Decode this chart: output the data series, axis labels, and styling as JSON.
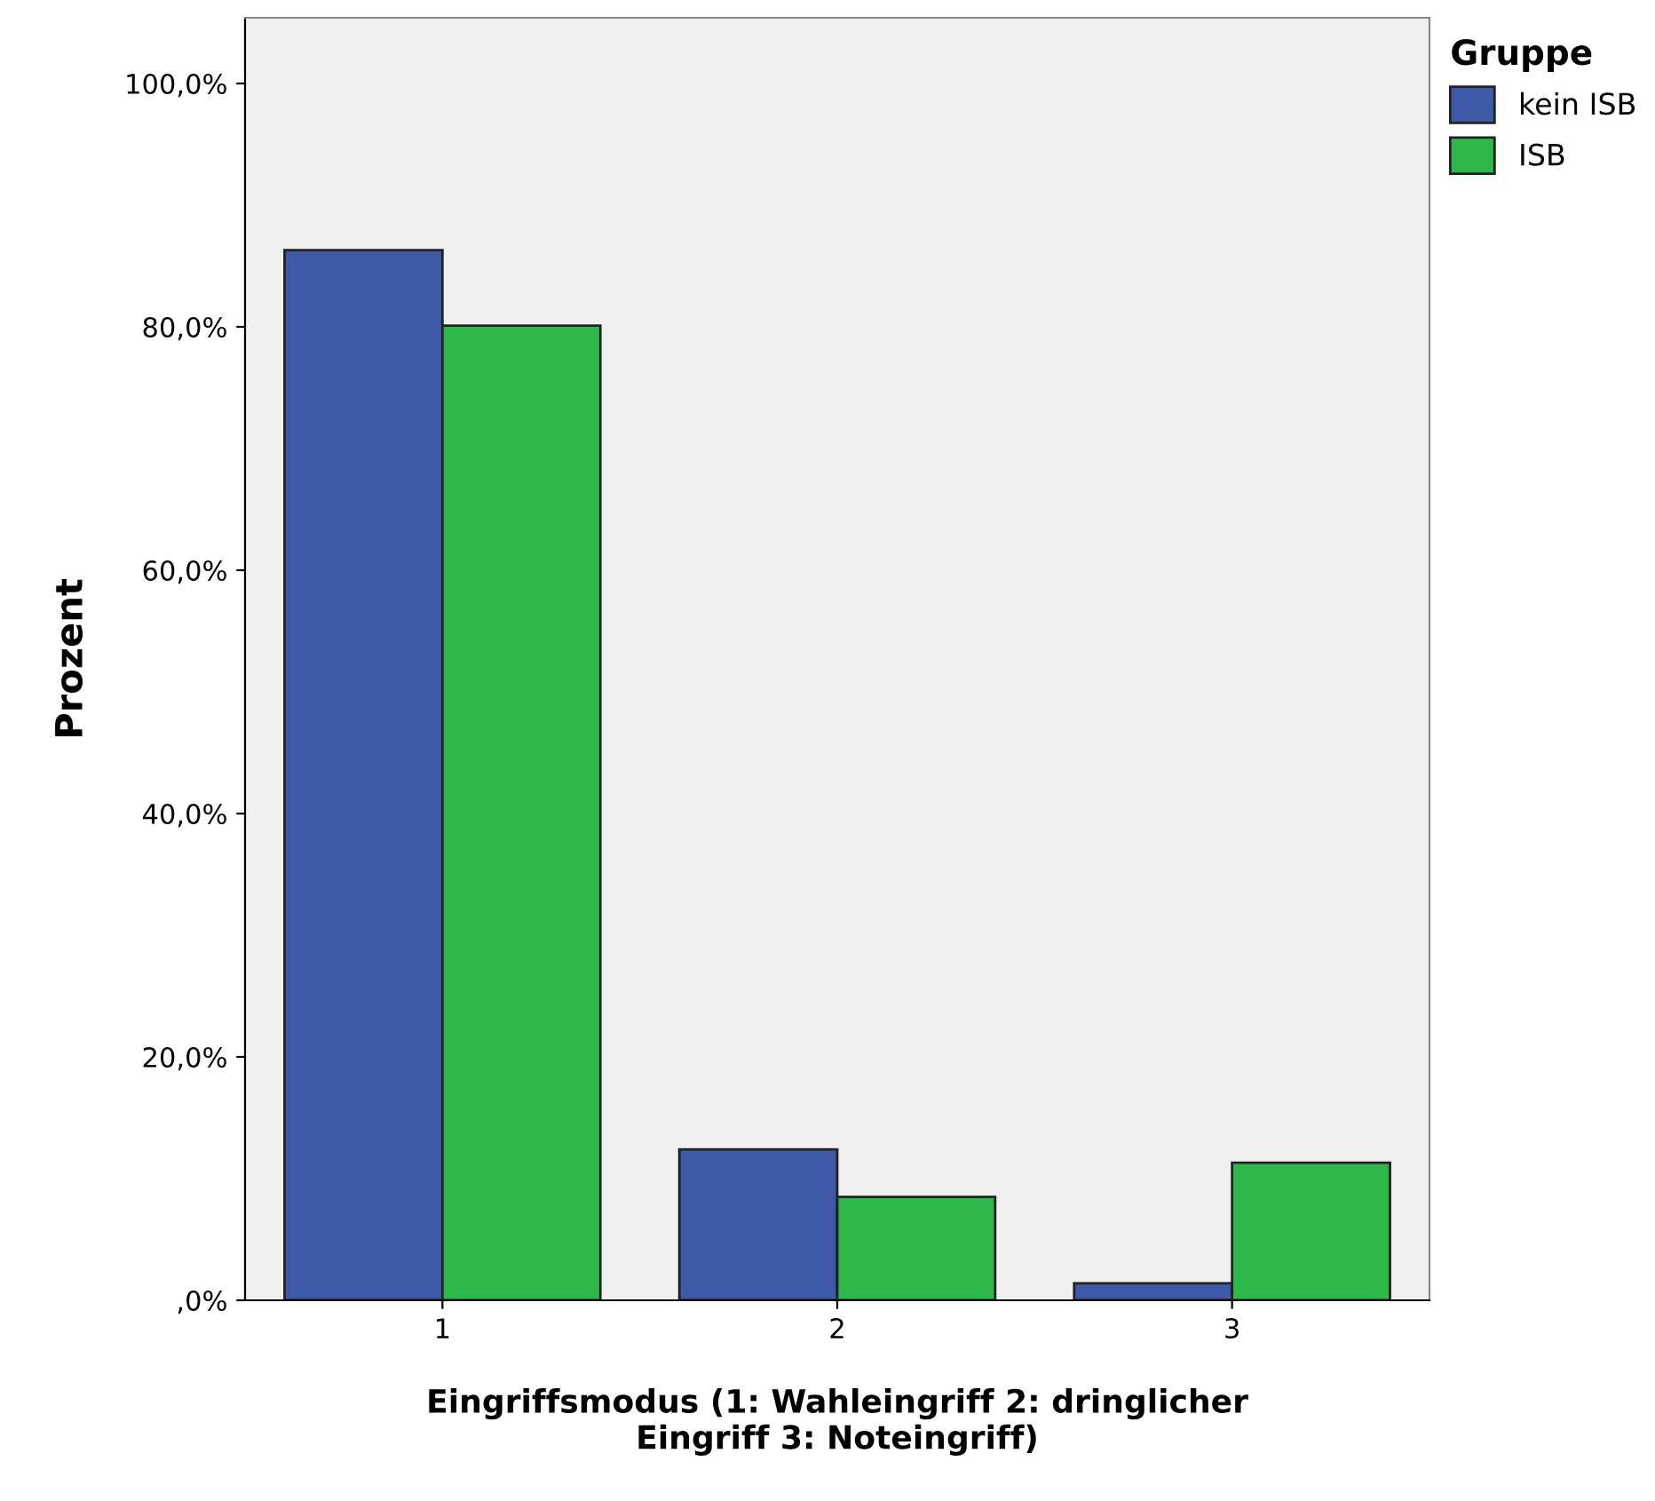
{
  "chart_data": {
    "type": "bar",
    "xlabel": "Eingriffsmodus (1: Wahleingriff 2: dringlicher\nEingriff 3: Noteingriff)",
    "ylabel": "Prozent",
    "legend_title": "Gruppe",
    "categories": [
      "1",
      "2",
      "3"
    ],
    "series": [
      {
        "name": "kein ISB",
        "color": "#3e58a8",
        "values": [
          86.3,
          12.4,
          1.4
        ]
      },
      {
        "name": "ISB",
        "color": "#2eb84a",
        "values": [
          80.1,
          8.5,
          11.3
        ]
      }
    ],
    "ylim": [
      0,
      105.4
    ],
    "yticks": [
      {
        "value": 0,
        "label": ",0%"
      },
      {
        "value": 20,
        "label": "20,0%"
      },
      {
        "value": 40,
        "label": "40,0%"
      },
      {
        "value": 60,
        "label": "60,0%"
      },
      {
        "value": 80,
        "label": "80,0%"
      },
      {
        "value": 100,
        "label": "100,0%"
      }
    ],
    "grid": false,
    "legend": "top right"
  }
}
